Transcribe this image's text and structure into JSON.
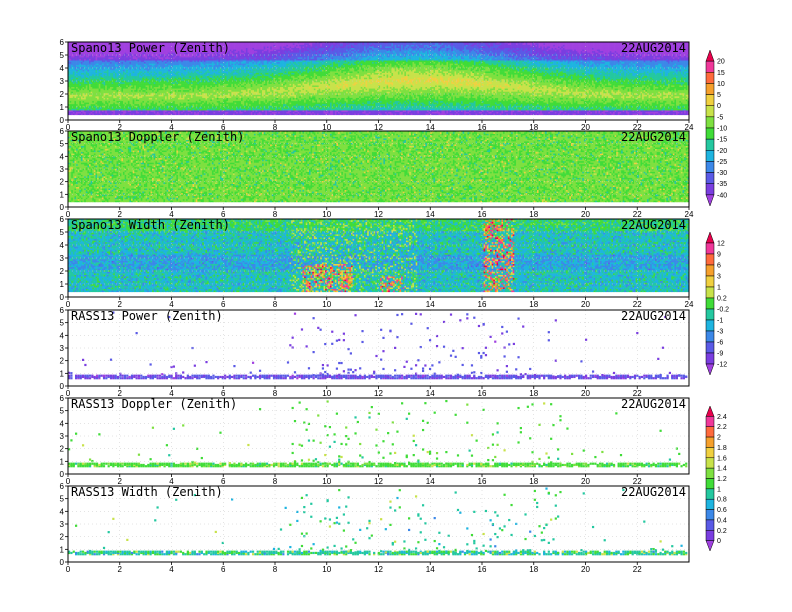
{
  "chart_data": {
    "type": "heatmap",
    "date": "22AUG2014",
    "panels": [
      {
        "title": "Spano13 Power (Zenith)",
        "date": "22AUG2014",
        "xlim": [
          0,
          24
        ],
        "ylim": [
          0,
          6
        ],
        "xticks": [
          "0",
          "2",
          "4",
          "6",
          "8",
          "10",
          "12",
          "14",
          "16",
          "18",
          "20",
          "22",
          "24"
        ],
        "yticks": [
          "0",
          "1",
          "2",
          "3",
          "4",
          "5",
          "6"
        ],
        "field": "power",
        "colorbar": 0,
        "sparse": false,
        "lowest_gate": 0.4
      },
      {
        "title": "Spano13 Doppler (Zenith)",
        "date": "22AUG2014",
        "xlim": [
          0,
          24
        ],
        "ylim": [
          0,
          6
        ],
        "xticks": [
          "0",
          "2",
          "4",
          "6",
          "8",
          "10",
          "12",
          "14",
          "16",
          "18",
          "20",
          "22",
          "24"
        ],
        "yticks": [
          "0",
          "1",
          "2",
          "3",
          "4",
          "5",
          "6"
        ],
        "field": "doppler",
        "colorbar": 0,
        "sparse": false,
        "lowest_gate": 0.4
      },
      {
        "title": "Spano13 Width (Zenith)",
        "date": "22AUG2014",
        "xlim": [
          0,
          24
        ],
        "ylim": [
          0,
          6
        ],
        "xticks": [
          "0",
          "2",
          "4",
          "6",
          "8",
          "10",
          "12",
          "14",
          "16",
          "18",
          "20",
          "22",
          "24"
        ],
        "yticks": [
          "0",
          "1",
          "2",
          "3",
          "4",
          "5",
          "6"
        ],
        "field": "width",
        "colorbar": 1,
        "sparse": false,
        "lowest_gate": 0.4
      },
      {
        "title": "RASS13 Power (Zenith)",
        "date": "22AUG2014",
        "xlim": [
          0,
          24
        ],
        "ylim": [
          0,
          6
        ],
        "xticks": [
          "0",
          "2",
          "4",
          "6",
          "8",
          "10",
          "12",
          "14",
          "16",
          "18",
          "20",
          "22"
        ],
        "yticks": [
          "0",
          "1",
          "2",
          "3",
          "4",
          "5",
          "6"
        ],
        "field": "rass_power",
        "colorbar": 1,
        "sparse": true,
        "lowest_gate": 0.6
      },
      {
        "title": "RASS13 Doppler (Zenith)",
        "date": "22AUG2014",
        "xlim": [
          0,
          24
        ],
        "ylim": [
          0,
          6
        ],
        "xticks": [
          "0",
          "2",
          "4",
          "6",
          "8",
          "10",
          "12",
          "14",
          "16",
          "18",
          "20",
          "22"
        ],
        "yticks": [
          "0",
          "1",
          "2",
          "3",
          "4",
          "5",
          "6"
        ],
        "field": "rass_doppler",
        "colorbar": 2,
        "sparse": true,
        "lowest_gate": 0.6
      },
      {
        "title": "RASS13 Width (Zenith)",
        "date": "22AUG2014",
        "xlim": [
          0,
          24
        ],
        "ylim": [
          0,
          6
        ],
        "xticks": [
          "0",
          "2",
          "4",
          "6",
          "8",
          "10",
          "12",
          "14",
          "16",
          "18",
          "20",
          "22"
        ],
        "yticks": [
          "0",
          "1",
          "2",
          "3",
          "4",
          "5",
          "6"
        ],
        "field": "rass_width",
        "colorbar": 2,
        "sparse": true,
        "lowest_gate": 0.6
      }
    ],
    "colorbars": [
      {
        "labels": [
          "20",
          "15",
          "10",
          "5",
          "0",
          "-5",
          "-10",
          "-15",
          "-20",
          "-25",
          "-30",
          "-35",
          "-40"
        ]
      },
      {
        "labels": [
          "12",
          "9",
          "6",
          "3",
          "1",
          "0.2",
          "-0.2",
          "-1",
          "-3",
          "-6",
          "-9",
          "-12"
        ]
      },
      {
        "labels": [
          "2.4",
          "2.2",
          "2",
          "1.8",
          "1.6",
          "1.4",
          "1.2",
          "1",
          "0.8",
          "0.6",
          "0.4",
          "0.2",
          "0"
        ]
      }
    ],
    "palette": [
      "#e8004c",
      "#f0389a",
      "#ff6a3c",
      "#f6a02c",
      "#f0d040",
      "#c8e24a",
      "#7ee040",
      "#40dc38",
      "#24c8a0",
      "#1eb4e0",
      "#3c88e8",
      "#5a5ae6",
      "#7a3ee0",
      "#a040e0"
    ],
    "grid": true
  }
}
